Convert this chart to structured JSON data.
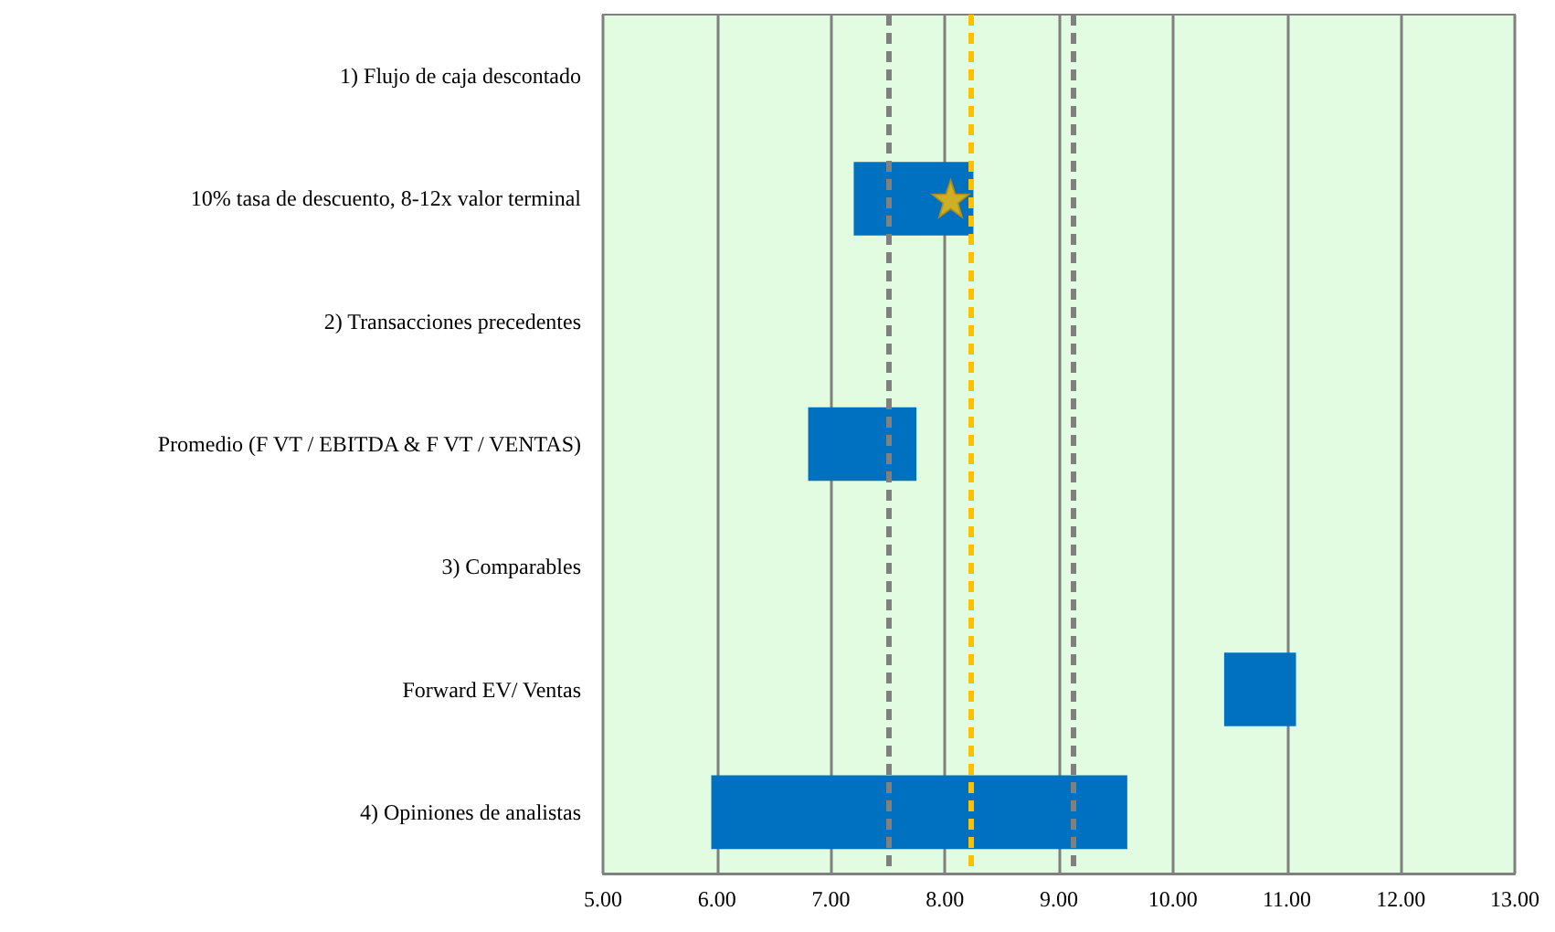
{
  "chart_data": {
    "type": "bar",
    "orientation": "horizontal",
    "categories": [
      "1) Flujo de caja descontado",
      "10% tasa de descuento, 8-12x valor terminal",
      "2) Transacciones precedentes",
      "Promedio (F VT / EBITDA & F VT / VENTAS)",
      "3) Comparables",
      "Forward EV/ Ventas",
      "4) Opiniones de analistas"
    ],
    "series": [
      {
        "color": "#0070c0",
        "values": [
          null,
          1.05,
          null,
          0.95,
          null,
          0.63,
          3.65
        ],
        "base": [
          null,
          7.2,
          null,
          6.8,
          null,
          10.45,
          5.95
        ]
      },
      {
        "type": "scatter",
        "color": "#ffc000",
        "marker": "star",
        "values": [
          null,
          8.05,
          null,
          null,
          null,
          null,
          null
        ]
      }
    ],
    "xlim": [
      5,
      13
    ],
    "xticks": [
      {
        "value": 5,
        "label": "5.00"
      },
      {
        "value": 6,
        "label": "6.00"
      },
      {
        "value": 7,
        "label": "7.00"
      },
      {
        "value": 8,
        "label": "8.00"
      },
      {
        "value": 9,
        "label": "9.00"
      },
      {
        "value": 10,
        "label": "10.00"
      },
      {
        "value": 11,
        "label": "11.00"
      },
      {
        "value": 12,
        "label": "12.00"
      },
      {
        "value": 13,
        "label": "13.00"
      }
    ],
    "ref_lines": [
      {
        "axis": "x",
        "value": 7.5,
        "color": "#808080",
        "line_style": "dashed"
      },
      {
        "axis": "x",
        "value": 8.22,
        "color": "#ffc000",
        "line_style": "dashed"
      },
      {
        "axis": "x",
        "value": 9.13,
        "color": "#808080",
        "line_style": "dashed"
      }
    ],
    "grid": "x"
  }
}
